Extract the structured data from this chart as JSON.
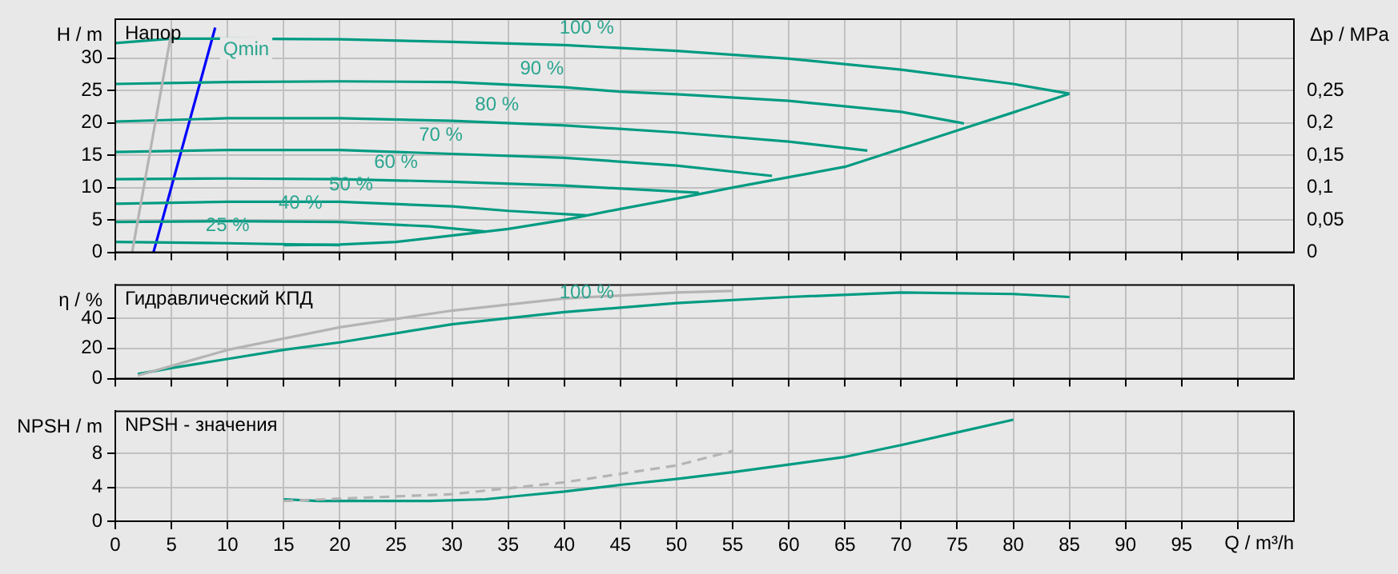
{
  "chart_data": [
    {
      "type": "line",
      "title": "Напор",
      "ylabel": "H / m",
      "y2label": "Δp / MPa",
      "xlim": [
        0,
        105
      ],
      "xticks": [
        0,
        5,
        10,
        15,
        20,
        25,
        30,
        35,
        40,
        45,
        50,
        55,
        60,
        65,
        70,
        75,
        80,
        85,
        90,
        95,
        100
      ],
      "ylim": [
        0,
        36
      ],
      "yticks": [
        0,
        5,
        10,
        15,
        20,
        25,
        30
      ],
      "y2lim": [
        0,
        0.36
      ],
      "y2ticks": [
        {
          "value": 0,
          "label": "0"
        },
        {
          "value": 0.05,
          "label": "0,05"
        },
        {
          "value": 0.1,
          "label": "0,1"
        },
        {
          "value": 0.15,
          "label": "0,15"
        },
        {
          "value": 0.2,
          "label": "0,2"
        },
        {
          "value": 0.25,
          "label": "0,25"
        }
      ],
      "tick_labels": "y",
      "grid": true,
      "series": [
        {
          "color": "#b4b4b4",
          "x": [
            1.5,
            5
          ],
          "values": [
            0,
            34
          ]
        },
        {
          "color": "#009b82",
          "x": [
            0,
            5,
            10,
            20,
            30,
            40,
            50,
            60,
            70,
            80,
            85
          ],
          "values": [
            32.3,
            33,
            33,
            32.9,
            32.5,
            32,
            31.1,
            29.9,
            28.2,
            26,
            24.5
          ]
        },
        {
          "color": "#009b82",
          "x": [
            0,
            10,
            20,
            30,
            40,
            45,
            50,
            60,
            70,
            75.6
          ],
          "values": [
            26,
            26.3,
            26.4,
            26.3,
            25.5,
            24.8,
            24.4,
            23.4,
            21.7,
            19.9
          ]
        },
        {
          "color": "#009b82",
          "x": [
            0,
            10,
            20,
            30,
            40,
            50,
            60,
            67
          ],
          "values": [
            20.2,
            20.7,
            20.7,
            20.3,
            19.6,
            18.5,
            17.1,
            15.7
          ]
        },
        {
          "color": "#009b82",
          "x": [
            0,
            10,
            20,
            30,
            40,
            50,
            58.5
          ],
          "values": [
            15.5,
            15.8,
            15.8,
            15.2,
            14.6,
            13.4,
            11.8
          ]
        },
        {
          "color": "#009b82",
          "x": [
            0,
            10,
            20,
            30,
            40,
            52
          ],
          "values": [
            11.3,
            11.4,
            11.3,
            10.9,
            10.3,
            9.2
          ]
        },
        {
          "color": "#009b82",
          "x": [
            0,
            10,
            20,
            30,
            35,
            42
          ],
          "values": [
            7.5,
            7.8,
            7.8,
            7.1,
            6.4,
            5.7
          ]
        },
        {
          "color": "#009b82",
          "x": [
            0,
            10,
            20,
            28,
            33
          ],
          "values": [
            4.7,
            4.8,
            4.7,
            4,
            3.2
          ]
        },
        {
          "color": "#009b82",
          "x": [
            0,
            10,
            20
          ],
          "values": [
            1.6,
            1.4,
            1.1
          ]
        },
        {
          "color": "#009b82",
          "x": [
            15,
            20,
            25,
            30,
            35,
            40,
            45,
            50,
            55,
            60,
            65,
            70,
            75,
            80,
            85
          ],
          "values": [
            1.1,
            1.2,
            1.6,
            2.6,
            3.6,
            5,
            6.7,
            8.3,
            10,
            11.6,
            13.2,
            16,
            18.8,
            21.6,
            24.5
          ]
        },
        {
          "name": "Qmin",
          "color": "#0000ff",
          "x": [
            3.4,
            8.9
          ],
          "values": [
            0,
            34.7
          ]
        }
      ],
      "annotations": [
        {
          "text": "100 %",
          "x": 42,
          "y": 31.9
        },
        {
          "text": "90 %",
          "x": 38,
          "y": 25.6
        },
        {
          "text": "80 %",
          "x": 34,
          "y": 20
        },
        {
          "text": "70 %",
          "x": 29,
          "y": 15.3
        },
        {
          "text": "60 %",
          "x": 25,
          "y": 11.1
        },
        {
          "text": "50 %",
          "x": 21,
          "y": 7.7
        },
        {
          "text": "40 %",
          "x": 16.5,
          "y": 4.8
        },
        {
          "text": "25 %",
          "x": 10,
          "y": 1.4
        }
      ]
    },
    {
      "type": "line",
      "title": "Гидравлический КПД",
      "ylabel": "η / %",
      "xlim": [
        0,
        105
      ],
      "xticks": [
        0,
        5,
        10,
        15,
        20,
        25,
        30,
        35,
        40,
        45,
        50,
        55,
        60,
        65,
        70,
        75,
        80,
        85,
        90,
        95,
        100
      ],
      "ylim": [
        0,
        62
      ],
      "yticks": [
        0,
        20,
        40
      ],
      "tick_labels": "y",
      "grid": true,
      "series": [
        {
          "color": "#b4b4b4",
          "x": [
            2,
            10,
            20,
            30,
            40,
            50,
            55
          ],
          "values": [
            2,
            19,
            34,
            45,
            53,
            57,
            58
          ]
        },
        {
          "color": "#009b82",
          "x": [
            2,
            5,
            10,
            15,
            20,
            30,
            40,
            50,
            60,
            70,
            80,
            85
          ],
          "values": [
            3,
            7,
            13,
            19,
            24,
            36,
            44,
            50,
            54,
            57,
            56,
            54
          ]
        }
      ],
      "annotations": [
        {
          "text": "100 %",
          "x": 42,
          "y": 45
        }
      ]
    },
    {
      "type": "line",
      "title": "NPSH - значения",
      "ylabel": "NPSH / m",
      "xlabel": "Q / m³/h",
      "xlim": [
        0,
        105
      ],
      "xticks": [
        0,
        5,
        10,
        15,
        20,
        25,
        30,
        35,
        40,
        45,
        50,
        55,
        60,
        65,
        70,
        75,
        80,
        85,
        90,
        95,
        {
          "value": 100,
          "label": null
        }
      ],
      "ylim": [
        0,
        13
      ],
      "yticks": [
        0,
        4,
        8
      ],
      "grid": true,
      "series": [
        {
          "color": "#b4b4b4",
          "line_style": "dashed",
          "x": [
            15,
            30,
            40,
            50,
            55
          ],
          "values": [
            2.4,
            3.2,
            4.6,
            6.6,
            8.3
          ]
        },
        {
          "color": "#009b82",
          "x": [
            15,
            18,
            28,
            33,
            36,
            40,
            45,
            50,
            55,
            60,
            65,
            70,
            75,
            80
          ],
          "values": [
            2.6,
            2.4,
            2.4,
            2.6,
            3,
            3.5,
            4.3,
            5,
            5.8,
            6.7,
            7.6,
            9,
            10.5,
            12
          ]
        }
      ]
    }
  ]
}
